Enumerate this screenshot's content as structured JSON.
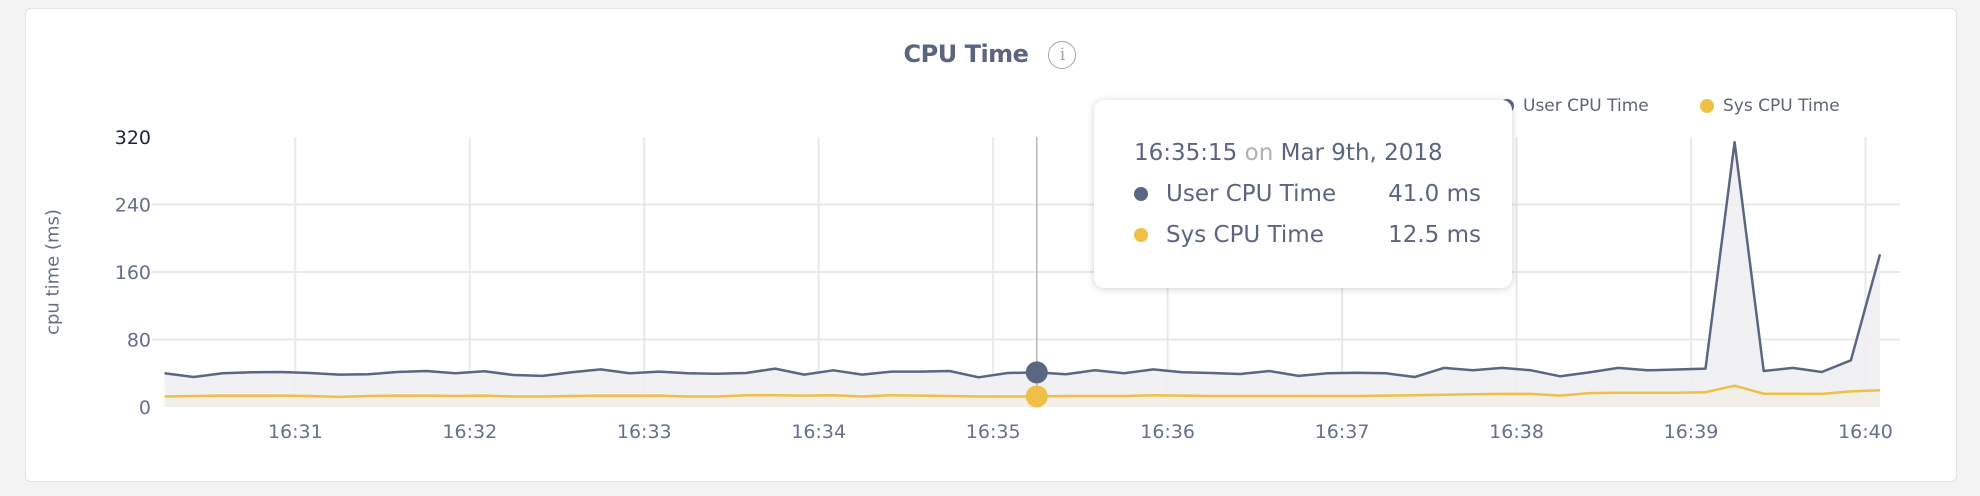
{
  "title": "CPU Time",
  "info_icon": "info-circle-icon",
  "legend": [
    {
      "label": "User CPU Time",
      "color": "#5b6682"
    },
    {
      "label": "Sys CPU Time",
      "color": "#efbf47"
    }
  ],
  "tooltip": {
    "time": "16:35:15",
    "on": "on",
    "date": "Mar 9th, 2018",
    "rows": [
      {
        "label": "User CPU Time",
        "value": "41.0 ms",
        "color": "#5b6682"
      },
      {
        "label": "Sys CPU Time",
        "value": "12.5 ms",
        "color": "#efbf47"
      }
    ]
  },
  "chart_data": {
    "type": "area",
    "ylabel": "cpu time (ms)",
    "xlabel": "",
    "ylim": [
      0,
      320
    ],
    "yticks": [
      "0",
      "80",
      "160",
      "240",
      "320"
    ],
    "xticks": [
      "16:31",
      "16:32",
      "16:33",
      "16:34",
      "16:35",
      "16:36",
      "16:37",
      "16:38",
      "16:39",
      "16:40"
    ],
    "grid": true,
    "legend_position": "top-right",
    "hover_index": 30,
    "x": [
      "16:30:15",
      "16:30:25",
      "16:30:35",
      "16:30:45",
      "16:30:55",
      "16:31:05",
      "16:31:15",
      "16:31:25",
      "16:31:35",
      "16:31:45",
      "16:31:55",
      "16:32:05",
      "16:32:15",
      "16:32:25",
      "16:32:35",
      "16:32:45",
      "16:32:55",
      "16:33:05",
      "16:33:15",
      "16:33:25",
      "16:33:35",
      "16:33:45",
      "16:33:55",
      "16:34:05",
      "16:34:15",
      "16:34:25",
      "16:34:35",
      "16:34:45",
      "16:34:55",
      "16:35:05",
      "16:35:15",
      "16:35:25",
      "16:35:35",
      "16:35:45",
      "16:35:55",
      "16:36:05",
      "16:36:15",
      "16:36:25",
      "16:36:35",
      "16:36:45",
      "16:36:55",
      "16:37:05",
      "16:37:15",
      "16:37:25",
      "16:37:35",
      "16:37:45",
      "16:37:55",
      "16:38:05",
      "16:38:15",
      "16:38:25",
      "16:38:35",
      "16:38:45",
      "16:38:55",
      "16:39:05",
      "16:39:15",
      "16:39:25",
      "16:39:35",
      "16:39:45",
      "16:39:55",
      "16:40:05"
    ],
    "series": [
      {
        "name": "User CPU Time",
        "color": "#5b6682",
        "fill": "#eff0f3",
        "values": [
          40.0,
          35.6,
          40.0,
          41.1,
          41.5,
          40.3,
          38.4,
          38.7,
          41.5,
          42.7,
          40.0,
          42.3,
          37.9,
          36.8,
          41.1,
          44.6,
          40.0,
          41.9,
          40.0,
          39.5,
          40.3,
          45.5,
          38.4,
          43.5,
          38.4,
          41.9,
          41.9,
          42.7,
          35.2,
          40.3,
          41.0,
          38.7,
          43.5,
          40.0,
          44.6,
          41.1,
          40.3,
          39.1,
          42.7,
          36.8,
          40.0,
          40.5,
          40.0,
          35.6,
          46.3,
          43.5,
          46.3,
          43.5,
          36.4,
          41.0,
          46.3,
          43.5,
          44.5,
          45.5,
          314,
          42.7,
          46.3,
          41.5,
          55.3,
          181
        ]
      },
      {
        "name": "Sys CPU Time",
        "color": "#efbf47",
        "fill": "#f1eee6",
        "values": [
          12.5,
          13,
          13.5,
          13.5,
          13.5,
          13,
          12,
          13,
          13.5,
          13.5,
          13,
          13.5,
          12.5,
          12.5,
          13,
          13.5,
          13.5,
          13.5,
          12.5,
          12.5,
          14,
          14,
          13.5,
          14,
          12.5,
          14,
          13.5,
          13,
          12.5,
          12.5,
          12.5,
          13,
          13,
          13,
          14,
          13.5,
          13,
          13,
          13,
          13,
          13,
          13,
          13.5,
          14,
          14.5,
          15,
          15.5,
          15.5,
          13.5,
          16.5,
          17,
          17,
          17,
          17.5,
          25.3,
          15.8,
          15.8,
          15.5,
          18.5,
          19.8
        ]
      }
    ]
  }
}
